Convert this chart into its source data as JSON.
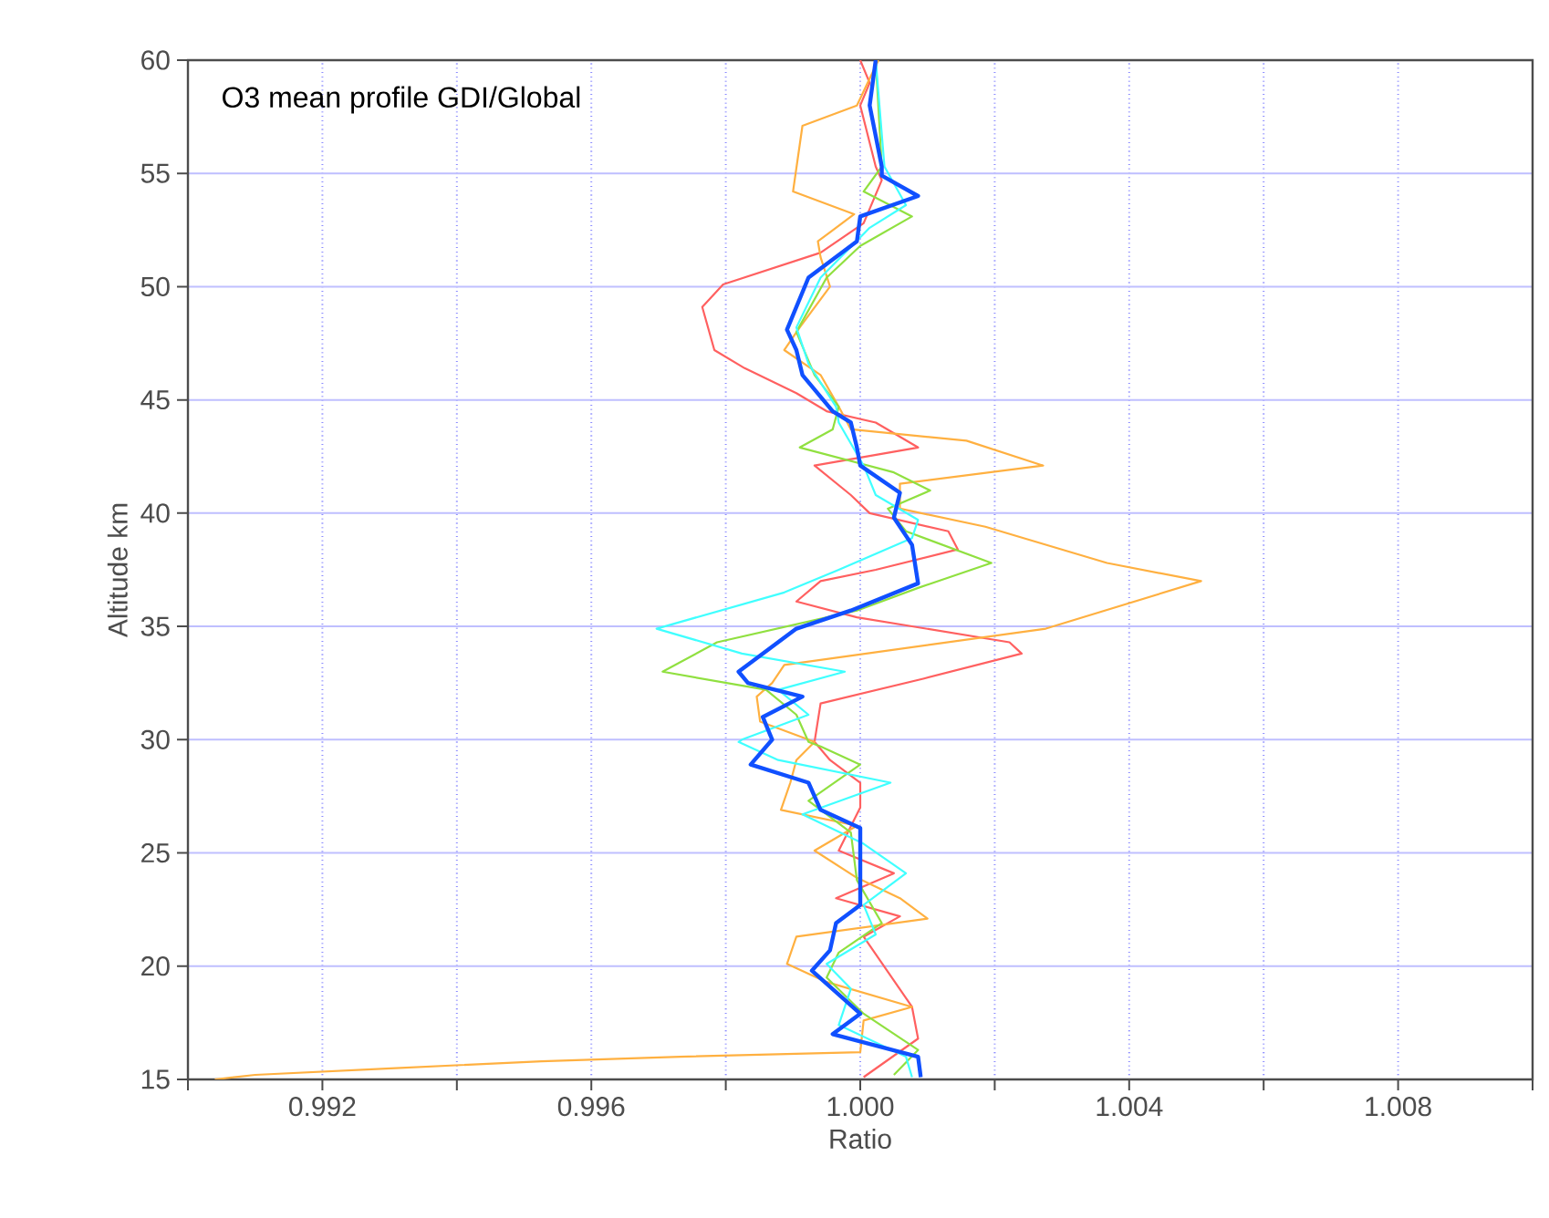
{
  "chart_data": {
    "type": "line",
    "title": "O3 mean profile GDI/Global",
    "xlabel": "Ratio",
    "ylabel": "Altitude km",
    "xlim": [
      0.99,
      1.01
    ],
    "ylim": [
      15,
      60
    ],
    "xticks": [
      {
        "value": 0.99,
        "label": null
      },
      0.992,
      {
        "value": 0.994,
        "label": null
      },
      0.996,
      {
        "value": 0.998,
        "label": null
      },
      {
        "value": 1.0,
        "label": "1.000"
      },
      {
        "value": 1.002,
        "label": null
      },
      1.004,
      {
        "value": 1.006,
        "label": null
      },
      1.008,
      {
        "value": 1.01,
        "label": null
      }
    ],
    "yticks": [
      15,
      20,
      25,
      30,
      35,
      40,
      45,
      50,
      55,
      60
    ],
    "grid": true,
    "marker": "none",
    "line_style": "solid",
    "series": [
      {
        "color": "#ff6060",
        "x": [
          1.0,
          1.00014,
          1.0,
          1.00023,
          1.00032,
          1.00005,
          0.99941,
          0.99796,
          0.99765,
          0.99783,
          0.99828,
          0.99905,
          0.9995,
          1.00023,
          1.00086,
          0.99932,
          0.99986,
          1.00014,
          1.00131,
          1.00145,
          1.00023,
          0.99941,
          0.99905,
          0.99995,
          1.00222,
          1.0024,
          1.00095,
          0.99941,
          0.99932,
          0.99955,
          1.0,
          1.0,
          0.99968,
          1.0005,
          0.99964,
          1.00059,
          1.00005,
          1.00077,
          1.00086,
          1.00005
        ],
        "values": [
          60,
          59,
          58,
          55.3,
          54.7,
          52.8,
          51.5,
          50.1,
          49.1,
          47.2,
          46.4,
          45.3,
          44.5,
          44,
          42.9,
          42.1,
          40.8,
          40,
          39.2,
          38.4,
          37.5,
          37.0,
          36.1,
          35.4,
          34.3,
          33.8,
          32.7,
          31.6,
          29.9,
          29.1,
          28.1,
          27.0,
          25.1,
          24.1,
          23.0,
          22.2,
          21.3,
          18.2,
          16.8,
          15.1
        ]
      },
      {
        "color": "#ffb040",
        "x": [
          1.00027,
          0.99995,
          0.99914,
          0.999,
          0.99991,
          0.99937,
          0.99941,
          0.99955,
          0.9991,
          0.99887,
          0.99941,
          0.99968,
          0.99986,
          1.00158,
          1.00272,
          1.00059,
          1.00059,
          1.00186,
          1.00367,
          1.00507,
          1.00276,
          0.99887,
          0.99869,
          0.99846,
          0.99851,
          0.99932,
          0.99905,
          0.99896,
          0.99882,
          0.99995,
          0.99932,
          0.99995,
          1.00059,
          1.001,
          0.99905,
          0.99891,
          0.9995,
          1.00077,
          1.00005,
          1.0,
          0.99732,
          0.99526,
          0.99309,
          0.991,
          0.9904
        ],
        "values": [
          60,
          58,
          57.1,
          54.2,
          53.2,
          52,
          51.3,
          50,
          48.2,
          47.2,
          46.1,
          44.7,
          43.7,
          43.2,
          42.1,
          41.3,
          40.2,
          39.4,
          37.8,
          37.0,
          34.9,
          33.3,
          32.5,
          31.9,
          30.8,
          29.9,
          29.1,
          28.1,
          26.9,
          26.2,
          25.1,
          23.9,
          23.0,
          22.1,
          21.3,
          20.1,
          19.3,
          18.2,
          17.6,
          16.2,
          16.0,
          15.8,
          15.5,
          15.2,
          15.0
        ]
      },
      {
        "color": "#90e040",
        "x": [
          1.00023,
          1.00032,
          1.00005,
          1.00077,
          1.0,
          0.9995,
          0.99905,
          0.99932,
          0.99968,
          0.99959,
          0.9991,
          1.0005,
          1.00104,
          1.00041,
          1.00068,
          1.00195,
          1.00086,
          0.99995,
          0.99787,
          0.99706,
          0.9986,
          0.99905,
          0.99923,
          0.99941,
          1.0,
          0.99923,
          0.99986,
          0.99995,
          1.00032,
          0.99968,
          0.9995,
          1.00005,
          1.00086,
          1.0005
        ],
        "values": [
          60,
          55.3,
          54.2,
          53.1,
          51.8,
          50.4,
          48,
          46.1,
          44.7,
          43.7,
          42.9,
          41.8,
          41.0,
          40.2,
          39.2,
          37.8,
          36.7,
          35.7,
          34.3,
          33.0,
          32.2,
          31.1,
          29.9,
          29.7,
          28.9,
          27.3,
          25.9,
          23.8,
          21.9,
          20.6,
          19.5,
          17.9,
          16.3,
          15.2
        ]
      },
      {
        "color": "#40ffff",
        "x": [
          1.00023,
          1.00036,
          1.00068,
          1.00014,
          0.99941,
          0.99905,
          0.99923,
          0.99964,
          0.99968,
          1.00005,
          1.00023,
          1.00086,
          1.00077,
          0.99968,
          0.99887,
          0.99697,
          0.99824,
          0.99977,
          0.99878,
          0.99923,
          0.99824,
          0.99819,
          0.99878,
          1.00045,
          0.99914,
          1.00005,
          1.00068,
          1.00005,
          1.00023,
          0.9995,
          0.99986,
          0.99968,
          1.00068,
          1.00077
        ],
        "values": [
          60,
          55.3,
          53.6,
          52.6,
          50.4,
          48.2,
          46.6,
          44.7,
          44,
          42.1,
          40.8,
          39.7,
          38.9,
          37.5,
          36.5,
          34.9,
          33.8,
          33.0,
          32.2,
          31.1,
          30.0,
          29.9,
          29.1,
          28.1,
          26.7,
          25.4,
          24.1,
          22.7,
          21.4,
          20.1,
          19.0,
          17.4,
          16.0,
          15.1
        ]
      },
      {
        "color": "#1050ff",
        "x": [
          1.00023,
          1.00014,
          1.00032,
          1.00032,
          1.00086,
          1.0,
          0.99995,
          0.99923,
          0.99891,
          0.99905,
          0.99914,
          0.99959,
          0.99986,
          0.99995,
          1.0,
          1.00059,
          1.0005,
          1.00077,
          1.00086,
          0.99986,
          0.99905,
          0.99819,
          0.99833,
          0.99914,
          0.99855,
          0.99869,
          0.99837,
          0.99923,
          0.99941,
          1.0,
          1.0,
          0.99964,
          0.99955,
          0.99928,
          1.0,
          0.99959,
          1.00086,
          1.0009
        ],
        "values": [
          60,
          58,
          55.3,
          54.9,
          54.0,
          53.1,
          52,
          50.4,
          48.1,
          47.2,
          46.1,
          44.5,
          44,
          42.9,
          42.1,
          40.9,
          39.8,
          38.6,
          36.9,
          35.7,
          34.9,
          33.0,
          32.5,
          31.9,
          31.0,
          30,
          28.9,
          28.1,
          26.9,
          26.1,
          22.7,
          21.9,
          20.7,
          19.8,
          17.9,
          17.0,
          16.0,
          15.1
        ]
      }
    ]
  }
}
